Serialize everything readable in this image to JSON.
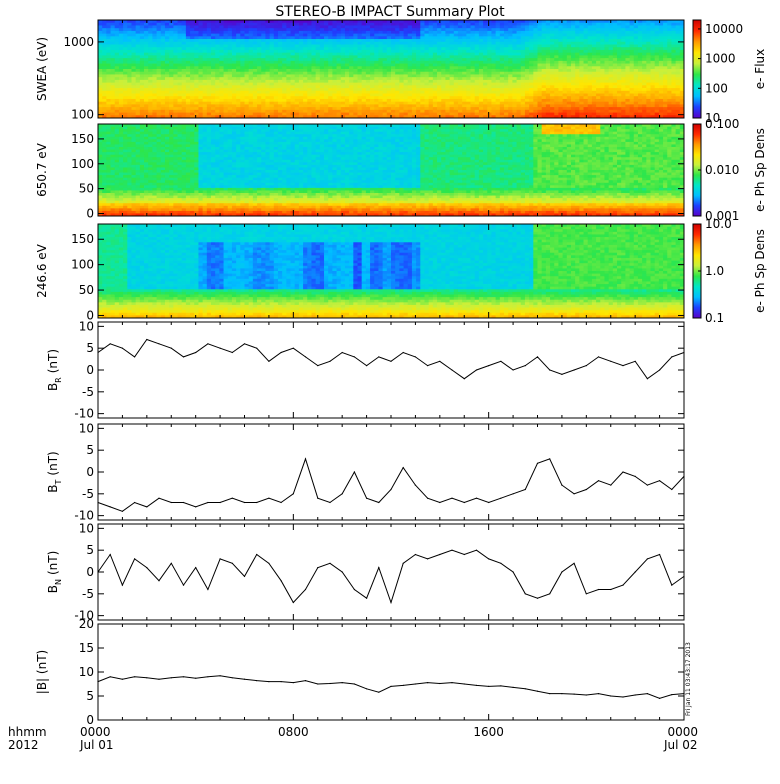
{
  "title": "STEREO-B IMPACT Summary Plot",
  "footer": {
    "hhmm": "hhmm",
    "year": "2012",
    "date_start": "Jul 01",
    "date_end": "Jul 02",
    "stamp": "Fri Jan 11 03:43:17 2013"
  },
  "colors": {
    "frame": "#000000",
    "trace": "#000000",
    "colormap": [
      "#5a00c8",
      "#1e40ff",
      "#00bfff",
      "#00e6c8",
      "#2ee64a",
      "#c8f03c",
      "#ffe600",
      "#ff9a00",
      "#ff2a00",
      "#d00000"
    ]
  },
  "chart_data": [
    {
      "type": "heatmap",
      "ylabel": "SWEA (eV)",
      "yscale": "log",
      "ylim": [
        90,
        2000
      ],
      "yticks": [
        "100",
        "1000"
      ],
      "xlim": [
        0,
        24
      ],
      "xticks": [
        "0000",
        "0800",
        "1600",
        "0000"
      ],
      "colorbar": {
        "label": "e- Flux",
        "scale": "log",
        "range": [
          10,
          20000
        ],
        "ticks": [
          "10",
          "100",
          "1000",
          "10000"
        ]
      }
    },
    {
      "type": "heatmap",
      "ylabel": "650.7 eV",
      "ylim": [
        -5,
        180
      ],
      "yticks": [
        "0",
        "50",
        "100",
        "150"
      ],
      "xlim": [
        0,
        24
      ],
      "colorbar": {
        "label": "e- Ph Sp Dens",
        "scale": "log",
        "range": [
          0.001,
          0.1
        ],
        "ticks": [
          "0.001",
          "0.010",
          "0.100"
        ]
      }
    },
    {
      "type": "heatmap",
      "ylabel": "246.6 eV",
      "ylim": [
        -5,
        180
      ],
      "yticks": [
        "0",
        "50",
        "100",
        "150"
      ],
      "xlim": [
        0,
        24
      ],
      "colorbar": {
        "label": "e- Ph Sp Dens",
        "scale": "log",
        "range": [
          0.1,
          10.0
        ],
        "ticks": [
          "0.1",
          "1.0",
          "10.0"
        ]
      }
    },
    {
      "type": "line",
      "ylabel": "B",
      "ysub": "R",
      "yunit": "(nT)",
      "ylim": [
        -11,
        11
      ],
      "yticks": [
        "-10",
        "-5",
        "0",
        "5",
        "10"
      ],
      "xlim": [
        0,
        24
      ],
      "x": [
        0,
        0.5,
        1,
        1.5,
        2,
        2.5,
        3,
        3.5,
        4,
        4.5,
        5,
        5.5,
        6,
        6.5,
        7,
        7.5,
        8,
        8.5,
        9,
        9.5,
        10,
        10.5,
        11,
        11.5,
        12,
        12.5,
        13,
        13.5,
        14,
        14.5,
        15,
        15.5,
        16,
        16.5,
        17,
        17.5,
        18,
        18.5,
        19,
        19.5,
        20,
        20.5,
        21,
        21.5,
        22,
        22.5,
        23,
        23.5,
        24
      ],
      "values": [
        4,
        6,
        5,
        3,
        7,
        6,
        5,
        3,
        4,
        6,
        5,
        4,
        6,
        5,
        2,
        4,
        5,
        3,
        1,
        2,
        4,
        3,
        1,
        3,
        2,
        4,
        3,
        1,
        2,
        0,
        -2,
        0,
        1,
        2,
        0,
        1,
        3,
        0,
        -1,
        0,
        1,
        3,
        2,
        1,
        2,
        -2,
        0,
        3,
        4
      ]
    },
    {
      "type": "line",
      "ylabel": "B",
      "ysub": "T",
      "yunit": "(nT)",
      "ylim": [
        -11,
        11
      ],
      "yticks": [
        "-10",
        "-5",
        "0",
        "5",
        "10"
      ],
      "xlim": [
        0,
        24
      ],
      "x": [
        0,
        0.5,
        1,
        1.5,
        2,
        2.5,
        3,
        3.5,
        4,
        4.5,
        5,
        5.5,
        6,
        6.5,
        7,
        7.5,
        8,
        8.5,
        9,
        9.5,
        10,
        10.5,
        11,
        11.5,
        12,
        12.5,
        13,
        13.5,
        14,
        14.5,
        15,
        15.5,
        16,
        16.5,
        17,
        17.5,
        18,
        18.5,
        19,
        19.5,
        20,
        20.5,
        21,
        21.5,
        22,
        22.5,
        23,
        23.5,
        24
      ],
      "values": [
        -7,
        -8,
        -9,
        -7,
        -8,
        -6,
        -7,
        -7,
        -8,
        -7,
        -7,
        -6,
        -7,
        -7,
        -6,
        -7,
        -5,
        3,
        -6,
        -7,
        -5,
        0,
        -6,
        -7,
        -4,
        1,
        -3,
        -6,
        -7,
        -6,
        -7,
        -6,
        -7,
        -6,
        -5,
        -4,
        2,
        3,
        -3,
        -5,
        -4,
        -2,
        -3,
        0,
        -1,
        -3,
        -2,
        -4,
        -1
      ]
    },
    {
      "type": "line",
      "ylabel": "B",
      "ysub": "N",
      "yunit": "(nT)",
      "ylim": [
        -11,
        11
      ],
      "yticks": [
        "-10",
        "-5",
        "0",
        "5",
        "10"
      ],
      "xlim": [
        0,
        24
      ],
      "x": [
        0,
        0.5,
        1,
        1.5,
        2,
        2.5,
        3,
        3.5,
        4,
        4.5,
        5,
        5.5,
        6,
        6.5,
        7,
        7.5,
        8,
        8.5,
        9,
        9.5,
        10,
        10.5,
        11,
        11.5,
        12,
        12.5,
        13,
        13.5,
        14,
        14.5,
        15,
        15.5,
        16,
        16.5,
        17,
        17.5,
        18,
        18.5,
        19,
        19.5,
        20,
        20.5,
        21,
        21.5,
        22,
        22.5,
        23,
        23.5,
        24
      ],
      "values": [
        0,
        4,
        -3,
        3,
        1,
        -2,
        2,
        -3,
        1,
        -4,
        3,
        2,
        -1,
        4,
        2,
        -2,
        -7,
        -4,
        1,
        2,
        0,
        -4,
        -6,
        1,
        -7,
        2,
        4,
        3,
        4,
        5,
        4,
        5,
        3,
        2,
        0,
        -5,
        -6,
        -5,
        0,
        2,
        -5,
        -4,
        -4,
        -3,
        0,
        3,
        4,
        -3,
        -1
      ]
    },
    {
      "type": "line",
      "ylabel": "|B| (nT)",
      "ylim": [
        0,
        20
      ],
      "yticks": [
        "0",
        "5",
        "10",
        "15",
        "20"
      ],
      "xlim": [
        0,
        24
      ],
      "x": [
        0,
        0.5,
        1,
        1.5,
        2,
        2.5,
        3,
        3.5,
        4,
        4.5,
        5,
        5.5,
        6,
        6.5,
        7,
        7.5,
        8,
        8.5,
        9,
        9.5,
        10,
        10.5,
        11,
        11.5,
        12,
        12.5,
        13,
        13.5,
        14,
        14.5,
        15,
        15.5,
        16,
        16.5,
        17,
        17.5,
        18,
        18.5,
        19,
        19.5,
        20,
        20.5,
        21,
        21.5,
        22,
        22.5,
        23,
        23.5,
        24
      ],
      "values": [
        8,
        9,
        8.5,
        9,
        8.8,
        8.5,
        8.8,
        9,
        8.7,
        9,
        9.2,
        8.8,
        8.5,
        8.2,
        8,
        8,
        7.8,
        8.2,
        7.5,
        7.6,
        7.8,
        7.5,
        6.5,
        5.8,
        7,
        7.2,
        7.5,
        7.8,
        7.6,
        7.8,
        7.5,
        7.2,
        7,
        7.1,
        6.8,
        6.5,
        6,
        5.5,
        5.5,
        5.4,
        5.2,
        5.5,
        5,
        4.8,
        5.2,
        5.5,
        4.5,
        5.3,
        5.5
      ]
    }
  ]
}
